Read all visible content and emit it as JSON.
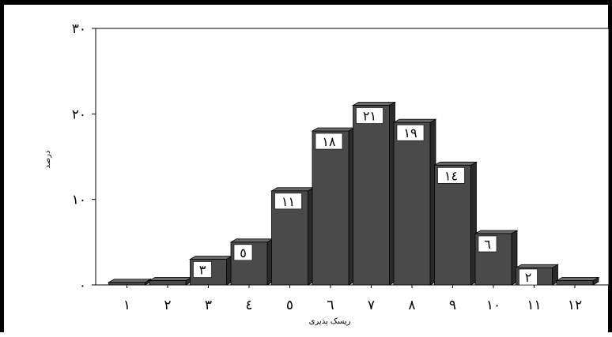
{
  "chart_data": {
    "type": "bar",
    "title": "",
    "xlabel": "ریسک پذیری",
    "ylabel": "درصد",
    "categories": [
      "١",
      "٢",
      "٣",
      "٤",
      "٥",
      "٦",
      "٧",
      "٨",
      "٩",
      "١٠",
      "١١",
      "١٢"
    ],
    "values": [
      0.3,
      0.5,
      3,
      5,
      11,
      18,
      21,
      19,
      14,
      6,
      2,
      0.5
    ],
    "data_labels": [
      "",
      "",
      "٣",
      "٥",
      "١١",
      "١٨",
      "٢١",
      "١٩",
      "١٤",
      "٦",
      "٢",
      ""
    ],
    "y_ticks": [
      0,
      10,
      20,
      30
    ],
    "y_tick_labels": [
      "٠",
      "١٠",
      "٢٠",
      "٣٠"
    ],
    "ylim": [
      0,
      30
    ],
    "grid": false,
    "legend": "none",
    "bar_color": "#4a4a4a",
    "bar_side_color": "#2a2a2a",
    "bar_top_color": "#6a6a6a"
  }
}
